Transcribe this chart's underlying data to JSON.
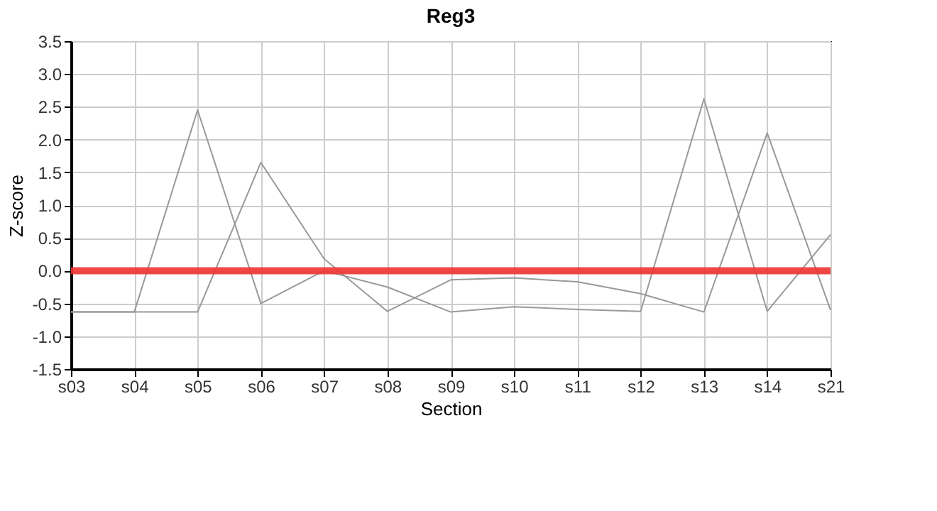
{
  "chart_data": {
    "type": "line",
    "title": "Reg3",
    "xlabel": "Section",
    "ylabel": "Z-score",
    "categories": [
      "s03",
      "s04",
      "s05",
      "s06",
      "s07",
      "s08",
      "s09",
      "s10",
      "s11",
      "s12",
      "s13",
      "s14",
      "s21"
    ],
    "series": [
      {
        "color": "#999999",
        "values": [
          -0.63,
          -0.63,
          2.45,
          -0.5,
          0.0,
          -0.25,
          -0.63,
          -0.55,
          -0.59,
          -0.62,
          2.62,
          -0.62,
          0.55
        ]
      },
      {
        "color": "#999999",
        "values": [
          -0.63,
          -0.63,
          -0.63,
          1.65,
          0.18,
          -0.62,
          -0.14,
          -0.11,
          -0.17,
          -0.35,
          -0.63,
          2.1,
          -0.6
        ]
      }
    ],
    "ylim": [
      -1.5,
      3.5
    ],
    "yticks": [
      {
        "value": -1.5,
        "label": "-1.5"
      },
      {
        "value": -1.0,
        "label": "-1.0"
      },
      {
        "value": -0.5,
        "label": "-0.5"
      },
      {
        "value": 0,
        "label": "0.0"
      },
      {
        "value": 0.5,
        "label": "0.5"
      },
      {
        "value": 1.0,
        "label": "1.0"
      },
      {
        "value": 1.5,
        "label": "1.5"
      },
      {
        "value": 2.0,
        "label": "2.0"
      },
      {
        "value": 2.5,
        "label": "2.5"
      },
      {
        "value": 3.0,
        "label": "3.0"
      },
      {
        "value": 3.5,
        "label": "3.5"
      }
    ],
    "ref_lines": [
      {
        "axis": "y",
        "value": 0,
        "color": "#ee3333"
      }
    ],
    "grid": true,
    "marker": "none",
    "line_style": "solid"
  }
}
